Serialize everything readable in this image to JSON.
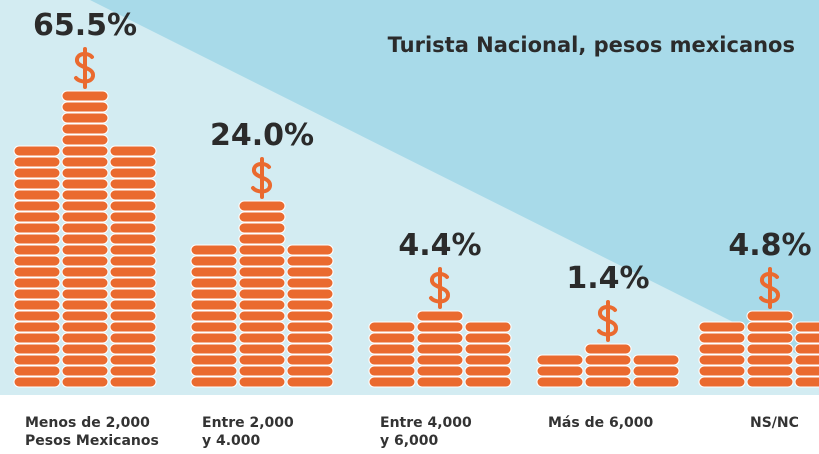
{
  "chart_data": {
    "type": "bar",
    "title": "Turista Nacional, pesos mexicanos",
    "categories": [
      "Menos de 2,000\nPesos Mexicanos",
      "Entre 2,000\ny 4.000",
      "Entre 4,000\ny 6,000",
      "Más de 6,000",
      "NS/NC"
    ],
    "values": [
      65.5,
      24.0,
      4.4,
      1.4,
      4.8
    ],
    "value_labels": [
      "65.5%",
      "24.0%",
      "4.4%",
      "1.4%",
      "4.8%"
    ],
    "color": "#ea6a2f"
  }
}
